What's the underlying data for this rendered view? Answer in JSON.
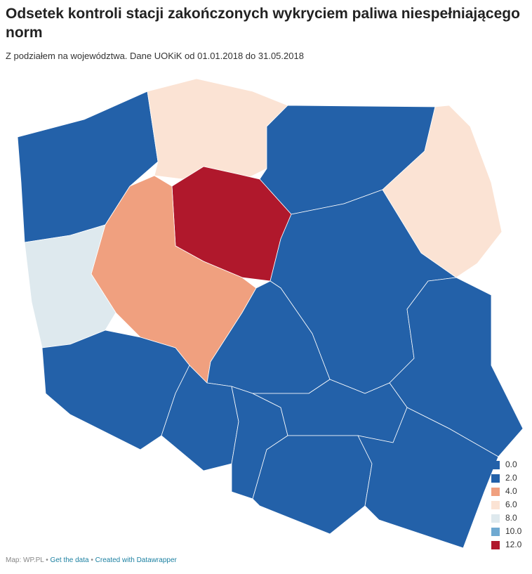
{
  "header": {
    "title": "Odsetek kontroli stacji zakończonych wykryciem paliwa niespełniającego norm",
    "subtitle": "Z podziałem na województwa. Dane UOKiK od 01.01.2018 do 31.05.2018"
  },
  "map": {
    "regions": [
      {
        "color": "#2361a9"
      },
      {
        "color": "#fbe3d4"
      },
      {
        "color": "#2361a9"
      },
      {
        "color": "#fbe3d4"
      },
      {
        "color": "#b0182c"
      },
      {
        "color": "#f0a07f"
      },
      {
        "color": "#dee9ee"
      },
      {
        "color": "#2361a9"
      },
      {
        "color": "#2361a9"
      },
      {
        "color": "#2361a9"
      },
      {
        "color": "#2361a9"
      },
      {
        "color": "#2361a9"
      },
      {
        "color": "#2361a9"
      },
      {
        "color": "#2361a9"
      },
      {
        "color": "#2361a9"
      },
      {
        "color": "#2361a9"
      }
    ],
    "legend": [
      {
        "value": 0,
        "label": "0.0",
        "color": "#2361a9"
      },
      {
        "value": 2,
        "label": "2.0",
        "color": "#2361a9"
      },
      {
        "value": 4,
        "label": "4.0",
        "color": "#f0a07f"
      },
      {
        "value": 6,
        "label": "6.0",
        "color": "#fbe3d4"
      },
      {
        "value": 8,
        "label": "8.0",
        "color": "#dee9ee"
      },
      {
        "value": 10,
        "label": "10.0",
        "color": "#6fa9d1"
      },
      {
        "value": 12,
        "label": "12.0",
        "color": "#b0182c"
      }
    ]
  },
  "footer": {
    "source": "Map: WP.PL",
    "separator": "•",
    "data_link": "Get the data",
    "credit": "Created with Datawrapper"
  }
}
